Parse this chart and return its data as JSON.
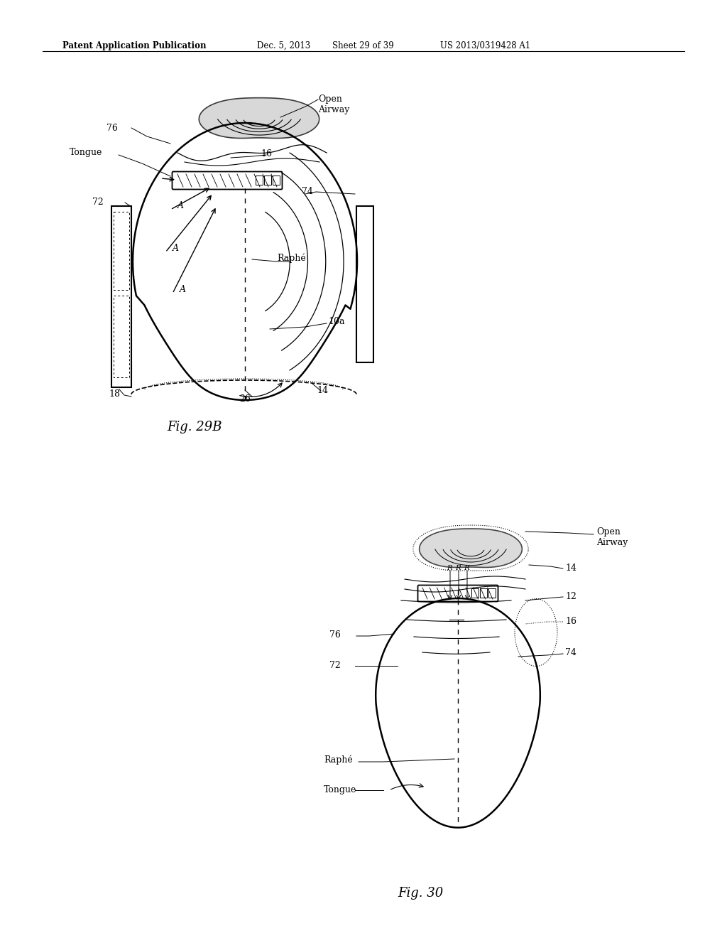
{
  "background_color": "#ffffff",
  "header_text": "Patent Application Publication",
  "header_date": "Dec. 5, 2013",
  "header_sheet": "Sheet 29 of 39",
  "header_patent": "US 2013/0319428 A1",
  "fig29b_label": "Fig. 29B",
  "fig30_label": "Fig. 30"
}
